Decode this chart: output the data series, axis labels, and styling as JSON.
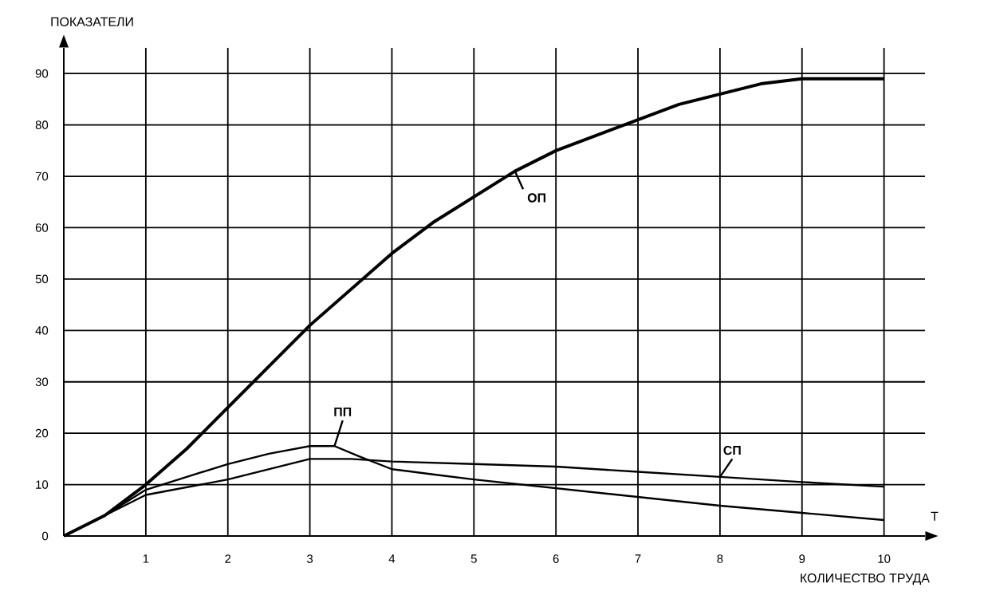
{
  "chart_data": {
    "type": "line",
    "xlabel": "КОЛИЧЕСТВО ТРУДА",
    "ylabel": "ПОКАЗАТЕЛИ",
    "annotations": [
      "Т"
    ],
    "xlim": [
      0,
      10.5
    ],
    "ylim": [
      0,
      95
    ],
    "xticks": [
      1,
      2,
      3,
      4,
      5,
      6,
      7,
      8,
      9,
      10
    ],
    "yticks": [
      0,
      10,
      20,
      30,
      40,
      50,
      60,
      70,
      80,
      90
    ],
    "grid": true,
    "marker": "none",
    "line_style": "solid",
    "series": [
      {
        "name": "ОП",
        "color": "#000000",
        "x": [
          0,
          0.5,
          1,
          1.5,
          2,
          2.5,
          3,
          3.5,
          4,
          4.5,
          5,
          5.5,
          6,
          6.5,
          7,
          7.5,
          8,
          8.5,
          9,
          9.5,
          10
        ],
        "values": [
          0,
          4,
          10,
          17,
          25,
          33,
          41,
          48,
          55,
          61,
          66,
          71,
          75,
          78,
          81,
          84,
          86,
          88,
          89,
          89,
          89
        ]
      },
      {
        "name": "ПП",
        "color": "#000000",
        "x": [
          0,
          0.5,
          1,
          2,
          2.5,
          3,
          3.3,
          3.6,
          4,
          4.5,
          5,
          6,
          7,
          8,
          9,
          10
        ],
        "values": [
          0,
          4,
          9,
          14,
          16,
          17.5,
          17.5,
          15.5,
          13,
          12,
          11,
          9.3,
          7.6,
          5.9,
          4.5,
          3.1
        ]
      },
      {
        "name": "СП",
        "color": "#000000",
        "x": [
          0,
          0.5,
          1,
          2,
          2.5,
          3,
          3.5,
          4,
          5,
          6,
          7,
          8,
          9,
          10
        ],
        "values": [
          0,
          4,
          8,
          11,
          13,
          15,
          15,
          14.5,
          14,
          13.5,
          12.5,
          11.5,
          10.5,
          9.6
        ]
      }
    ]
  }
}
